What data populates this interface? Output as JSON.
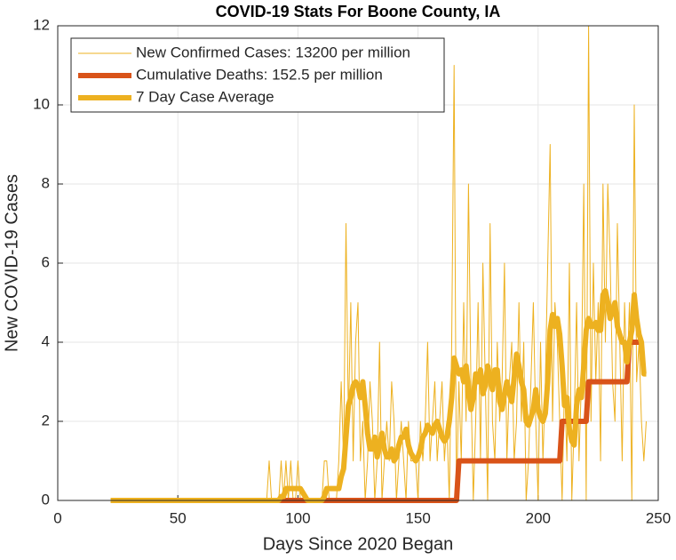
{
  "chart_data": {
    "type": "line",
    "title": "COVID-19 Stats For Boone County, IA",
    "xlabel": "Days Since 2020 Began",
    "ylabel": "New COVID-19 Cases",
    "xlim": [
      0,
      250
    ],
    "xticks": [
      0,
      50,
      100,
      150,
      200,
      250
    ],
    "ylim": [
      0,
      12
    ],
    "yticks": [
      0,
      2,
      4,
      6,
      8,
      10,
      12
    ],
    "grid": true,
    "legend": "upper left",
    "x": [
      22,
      87,
      88,
      89,
      90,
      91,
      92,
      93,
      94,
      95,
      96,
      97,
      98,
      99,
      100,
      101,
      102,
      103,
      104,
      105,
      106,
      107,
      108,
      109,
      110,
      111,
      112,
      113,
      114,
      115,
      116,
      117,
      118,
      119,
      120,
      121,
      122,
      123,
      124,
      125,
      126,
      127,
      128,
      129,
      130,
      131,
      132,
      133,
      134,
      135,
      136,
      137,
      138,
      139,
      140,
      141,
      142,
      143,
      144,
      145,
      146,
      147,
      148,
      149,
      150,
      151,
      152,
      153,
      154,
      155,
      156,
      157,
      158,
      159,
      160,
      161,
      162,
      163,
      164,
      165,
      166,
      167,
      168,
      169,
      170,
      171,
      172,
      173,
      174,
      175,
      176,
      177,
      178,
      179,
      180,
      181,
      182,
      183,
      184,
      185,
      186,
      187,
      188,
      189,
      190,
      191,
      192,
      193,
      194,
      195,
      196,
      197,
      198,
      199,
      200,
      201,
      202,
      203,
      204,
      205,
      206,
      207,
      208,
      209,
      210,
      211,
      212,
      213,
      214,
      215,
      216,
      217,
      218,
      219,
      220,
      221,
      222,
      223,
      224,
      225,
      226,
      227,
      228,
      229,
      230,
      231,
      232,
      233,
      234,
      235,
      236,
      237,
      238,
      239,
      240,
      241,
      242,
      243,
      244,
      245
    ],
    "series": [
      {
        "name": "New Confirmed Cases: 13200 per million",
        "color": "#EDB120",
        "width": 1,
        "values": [
          0,
          0,
          1,
          0,
          0,
          0,
          0,
          1,
          0,
          1,
          0,
          1,
          0,
          0,
          1,
          0,
          0,
          0,
          0,
          0,
          0,
          0,
          0,
          0,
          0,
          1,
          1,
          0,
          0,
          0,
          0,
          1,
          3,
          1,
          7,
          2,
          5,
          1,
          4,
          5,
          1,
          2,
          0,
          1,
          3,
          2,
          0,
          1,
          4,
          0,
          1,
          2,
          1,
          3,
          2,
          0,
          1,
          2,
          1,
          0,
          2,
          1,
          1,
          1,
          0,
          2,
          1,
          2,
          4,
          1,
          2,
          3,
          1,
          2,
          3,
          1,
          2,
          0,
          4,
          11,
          0,
          3,
          1,
          5,
          2,
          8,
          3,
          0,
          2,
          5,
          1,
          6,
          3,
          0,
          7,
          2,
          1,
          4,
          2,
          3,
          6,
          1,
          3,
          4,
          1,
          2,
          5,
          2,
          4,
          0,
          1,
          3,
          5,
          2,
          0,
          4,
          1,
          3,
          6,
          9,
          2,
          5,
          4,
          2,
          0,
          3,
          1,
          6,
          0,
          2,
          5,
          1,
          3,
          8,
          0,
          12,
          2,
          6,
          3,
          5,
          1,
          8,
          4,
          8,
          6,
          3,
          2,
          7,
          4,
          1,
          5,
          3,
          5,
          0,
          10,
          3,
          4,
          2,
          1,
          2
        ]
      },
      {
        "name": "Cumulative Deaths: 152.5 per million",
        "color": "#D95319",
        "width": 6,
        "x": [
          22,
          166,
          167,
          209,
          210,
          220,
          221,
          237,
          238,
          243
        ],
        "values": [
          0,
          0,
          1,
          1,
          2,
          2,
          3,
          3,
          4,
          4
        ]
      },
      {
        "name": "7 Day Case Average",
        "color": "#EDB120",
        "width": 6,
        "values": [
          0,
          0,
          0,
          0,
          0,
          0,
          0,
          0.1,
          0.1,
          0.3,
          0.3,
          0.3,
          0.3,
          0.3,
          0.3,
          0.3,
          0.2,
          0.1,
          0,
          0,
          0,
          0,
          0,
          0,
          0,
          0.1,
          0.3,
          0.3,
          0.3,
          0.3,
          0.3,
          0.3,
          0.6,
          0.8,
          1.6,
          2.4,
          2.6,
          2.9,
          3.0,
          2.9,
          2.6,
          3.0,
          2.4,
          1.7,
          1.3,
          1.3,
          1.6,
          1.1,
          1.4,
          1.7,
          1.3,
          1.1,
          1.1,
          1.3,
          1.0,
          1.1,
          1.4,
          1.6,
          1.6,
          1.8,
          1.4,
          1.2,
          1.1,
          1.0,
          1.1,
          1.3,
          1.6,
          1.7,
          1.9,
          1.8,
          1.7,
          1.9,
          2.0,
          1.8,
          1.6,
          1.5,
          1.6,
          2.0,
          2.6,
          3.6,
          3.4,
          3.2,
          3.3,
          3.0,
          3.4,
          2.8,
          2.3,
          2.6,
          3.2,
          3.0,
          3.3,
          2.7,
          2.9,
          3.4,
          3.1,
          2.8,
          3.3,
          3.3,
          2.5,
          2.3,
          2.7,
          3.0,
          2.7,
          2.5,
          3.1,
          3.7,
          3.4,
          3.0,
          2.8,
          2.0,
          1.9,
          2.1,
          2.3,
          2.8,
          2.3,
          2.1,
          2.0,
          2.2,
          3.0,
          4.3,
          4.7,
          4.4,
          4.6,
          4.2,
          3.4,
          2.4,
          2.6,
          1.8,
          1.5,
          1.4,
          2.4,
          2.8,
          2.6,
          3.4,
          4.3,
          4.6,
          4.4,
          4.4,
          4.5,
          4.3,
          4.3,
          5.2,
          5.3,
          5.0,
          4.6,
          4.8,
          5.0,
          4.4,
          4.2,
          4.0,
          4.0,
          3.5,
          4.0,
          4.3,
          5.2,
          4.6,
          4.2,
          4.0,
          3.2,
          3.2
        ]
      }
    ]
  }
}
